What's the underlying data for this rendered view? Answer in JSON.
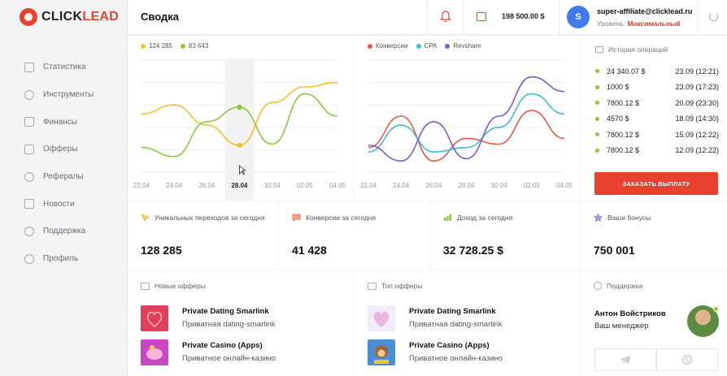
{
  "brand": {
    "logo_prefix": "CLICK",
    "logo_suffix": "LEAD"
  },
  "sidebar": {
    "items": [
      {
        "label": "Статистика",
        "icon": "bar-chart-icon"
      },
      {
        "label": "Инструменты",
        "icon": "gear-icon"
      },
      {
        "label": "Финансы",
        "icon": "wallet-icon"
      },
      {
        "label": "Офферы",
        "icon": "chat-icon"
      },
      {
        "label": "Рефералы",
        "icon": "users-icon"
      },
      {
        "label": "Новости",
        "icon": "news-icon"
      },
      {
        "label": "Поддержка",
        "icon": "support-icon"
      },
      {
        "label": "Профиль",
        "icon": "user-icon"
      }
    ]
  },
  "header": {
    "title": "Сводка",
    "balance": "198 500.00 $",
    "avatar_letter": "S",
    "email": "super-affiliate@clicklead.ru",
    "level_label": "Уровень:",
    "level_value": "Максимальный"
  },
  "colors": {
    "accent": "#e8412e",
    "yellow": "#f0c22e",
    "green": "#8cc63e",
    "red": "#e8574a",
    "cyan": "#3ebcd2",
    "purple": "#7a5cc7"
  },
  "chart_data": [
    {
      "type": "line",
      "categories": [
        "22.04",
        "24.04",
        "26.04",
        "28.04",
        "30.04",
        "02.05",
        "04.05"
      ],
      "highlight": "28.04",
      "series": [
        {
          "name": "124 285",
          "color": "#f0c22e",
          "values": [
            52,
            60,
            42,
            24,
            62,
            76,
            80
          ]
        },
        {
          "name": "83 643",
          "color": "#8cc63e",
          "values": [
            22,
            14,
            45,
            58,
            25,
            70,
            50
          ]
        }
      ],
      "ylim": [
        0,
        100
      ]
    },
    {
      "type": "line",
      "categories": [
        "22.04",
        "24.04",
        "26.04",
        "28.04",
        "30.04",
        "02.05",
        "04.05"
      ],
      "series": [
        {
          "name": "Конверсии",
          "color": "#e8574a",
          "values": [
            22,
            50,
            10,
            30,
            25,
            55,
            30
          ]
        },
        {
          "name": "CPA",
          "color": "#3ebcd2",
          "values": [
            18,
            42,
            18,
            22,
            40,
            70,
            52
          ]
        },
        {
          "name": "Revshare",
          "color": "#7a5cc7",
          "values": [
            24,
            10,
            45,
            12,
            50,
            85,
            72
          ]
        }
      ],
      "ylim": [
        0,
        100
      ]
    }
  ],
  "history": {
    "title": "История операций",
    "rows": [
      {
        "amount": "24 340.07 $",
        "time": "23.09 (12:21)"
      },
      {
        "amount": "1000 $",
        "time": "23.09 (17:23)"
      },
      {
        "amount": "7800.12 $",
        "time": "20.09 (23:30)"
      },
      {
        "amount": "4570 $",
        "time": "18.09 (14:30)"
      },
      {
        "amount": "7800.12 $",
        "time": "15.09 (12:22)"
      },
      {
        "amount": "7800.12 $",
        "time": "12.09 (12:22)"
      }
    ],
    "button": "ЗАКАЗАТЬ ВЫПЛАТУ"
  },
  "stats": [
    {
      "title": "Уникальных переходов за сегодня",
      "value": "128 285"
    },
    {
      "title": "Конверсии за сегодня",
      "value": "41 428"
    },
    {
      "title": "Доход за сегодня",
      "value": "32 728.25 $"
    },
    {
      "title": "Ваши бонусы",
      "value": "750 001"
    }
  ],
  "new_offers": {
    "title": "Новые офферы",
    "items": [
      {
        "name": "Private Dating Smarlink",
        "sub": "Приватная dating-smarlink"
      },
      {
        "name": "Private Casino (Apps)",
        "sub": "Приватное онлайн-казино"
      }
    ]
  },
  "top_offers": {
    "title": "Топ офферы",
    "items": [
      {
        "name": "Private Dating Smarlink",
        "sub": "Приватная dating-smarlink"
      },
      {
        "name": "Private Casino (Apps)",
        "sub": "Приватное онлайн-казино"
      }
    ]
  },
  "support": {
    "title": "Поддержка",
    "name": "Антон Войстриков",
    "role": "Ваш менеджер"
  }
}
